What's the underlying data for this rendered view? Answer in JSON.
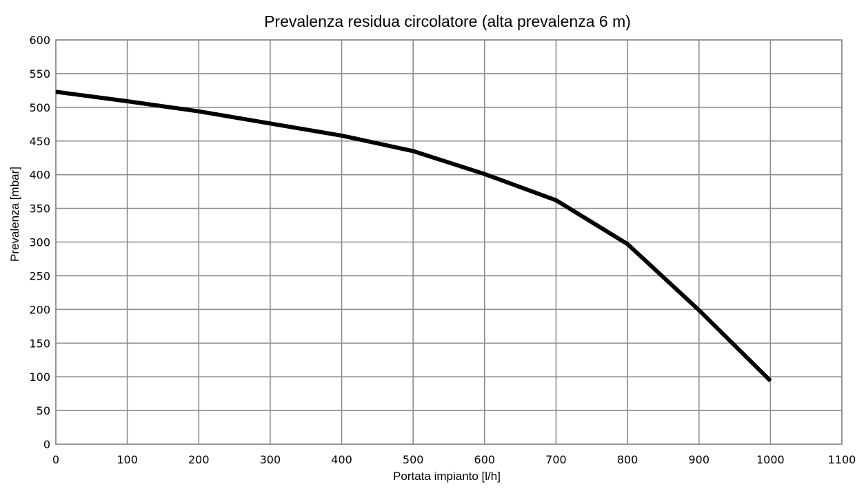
{
  "chart_data": {
    "type": "line",
    "title": "Prevalenza residua circolatore (alta prevalenza 6 m)",
    "xlabel": "Portata impianto [l/h]",
    "ylabel": "Prevalenza [mbar]",
    "xlim": [
      0,
      1100
    ],
    "ylim": [
      0,
      600
    ],
    "xticks": [
      "0",
      "100",
      "200",
      "300",
      "400",
      "500",
      "600",
      "700",
      "800",
      "900",
      "1000",
      "1100"
    ],
    "yticks": [
      "0",
      "50",
      "100",
      "150",
      "200",
      "250",
      "300",
      "350",
      "400",
      "450",
      "500",
      "550",
      "600"
    ],
    "grid": true,
    "series": [
      {
        "color": "#000000",
        "x": [
          0,
          100,
          200,
          300,
          400,
          500,
          600,
          700,
          800,
          900,
          1000
        ],
        "y": [
          523,
          509,
          494,
          476,
          458,
          435,
          401,
          362,
          297,
          199,
          94
        ]
      }
    ]
  }
}
